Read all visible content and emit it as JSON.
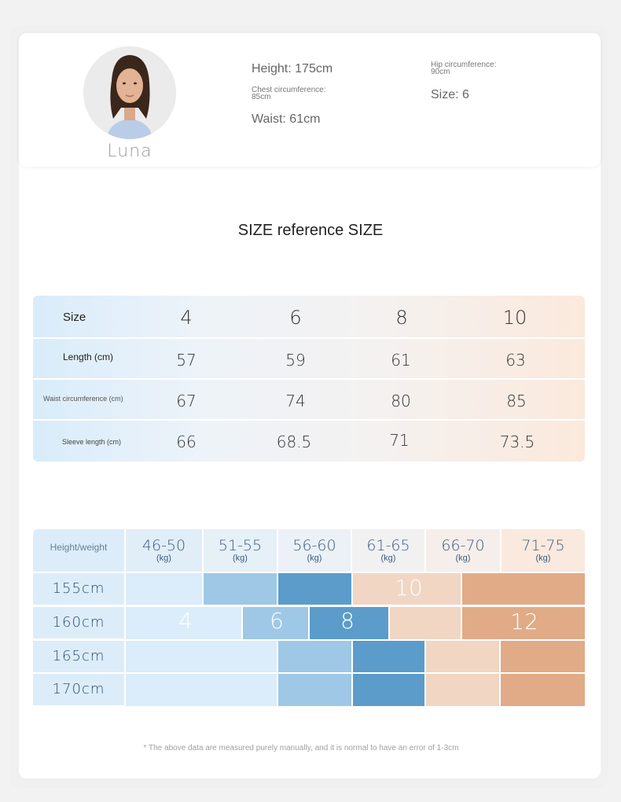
{
  "model": {
    "name": "Luna",
    "height": "Height: 175cm",
    "chest": "Chest circumference: 85cm",
    "waist": "Waist: 61cm",
    "hip": "Hip circumference: 90cm",
    "size": "Size: 6"
  },
  "section_title": "SIZE reference SIZE",
  "size_table": {
    "header_label": "Size",
    "sizes": [
      "4",
      "6",
      "8",
      "10"
    ],
    "rows": [
      {
        "label": "Length (cm)",
        "values": [
          "57",
          "59",
          "61",
          "63"
        ]
      },
      {
        "label": "Waist circumference (cm)",
        "values": [
          "67",
          "74",
          "80",
          "85"
        ]
      },
      {
        "label": "Sleeve length (cm)",
        "values": [
          "66",
          "68.5",
          "71",
          "73.5"
        ]
      }
    ]
  },
  "hw_chart": {
    "header_label": "Height/weight",
    "weight_ranges": [
      "46-50",
      "51-55",
      "56-60",
      "61-65",
      "66-70",
      "71-75"
    ],
    "weight_unit": "(kg)",
    "heights": [
      "155cm",
      "160cm",
      "165cm",
      "170cm"
    ],
    "size_labels": {
      "s4": "4",
      "s6": "6",
      "s8": "8",
      "s10": "10",
      "s12": "12"
    },
    "colors": {
      "size4": "#dbecfa",
      "size6": "#9fc8e6",
      "size8": "#5b9ccb",
      "size10": "#f0d6c3",
      "size12": "#e1ab87"
    }
  },
  "footnote": "* The above data are measured purely manually, and it is normal to have an error of 1-3cm"
}
